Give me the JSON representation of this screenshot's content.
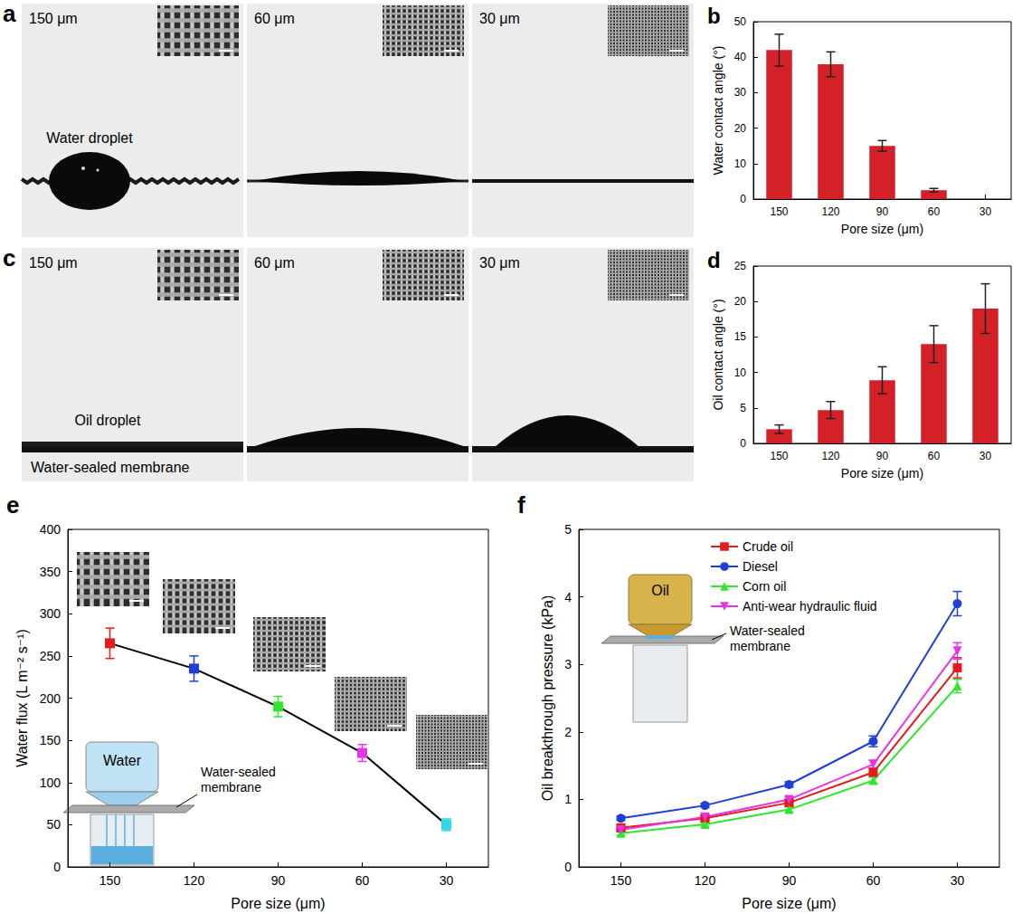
{
  "image_panels": [
    {
      "panel": "a",
      "photos": [
        "150 μm",
        "60 μm",
        "30 μm"
      ],
      "annotations": [
        "Water droplet"
      ]
    },
    {
      "panel": "c",
      "photos": [
        "150 μm",
        "60 μm",
        "30 μm"
      ],
      "annotations": [
        "Oil droplet",
        "Water-sealed membrane"
      ]
    }
  ],
  "chart_data": [
    {
      "panel": "b",
      "type": "bar",
      "categories": [
        "150",
        "120",
        "90",
        "60",
        "30"
      ],
      "values": [
        42,
        38,
        15,
        2.5,
        0
      ],
      "errors": [
        4.5,
        3.5,
        1.5,
        0.5,
        0
      ],
      "color": "#d42027",
      "x_label": "Pore size (μm)",
      "y_label": "Water contact angle (°)",
      "ylim": [
        0,
        50
      ],
      "yticks": [
        0,
        10,
        20,
        30,
        40,
        50
      ],
      "grid": false
    },
    {
      "panel": "d",
      "type": "bar",
      "categories": [
        "150",
        "120",
        "90",
        "60",
        "30"
      ],
      "values": [
        2,
        4.7,
        8.9,
        14,
        19
      ],
      "errors": [
        0.6,
        1.2,
        1.9,
        2.6,
        3.5
      ],
      "color": "#d42027",
      "x_label": "Pore size (μm)",
      "y_label": "Oil contact angle (°)",
      "ylim": [
        0,
        25
      ],
      "yticks": [
        0,
        5,
        10,
        15,
        20,
        25
      ],
      "grid": false
    },
    {
      "panel": "e",
      "type": "line",
      "categories": [
        "150",
        "120",
        "90",
        "60",
        "30"
      ],
      "values": [
        265,
        235,
        190,
        135,
        50
      ],
      "errors": [
        18,
        15,
        12,
        10,
        7
      ],
      "color": "#000000",
      "colors": [
        "#e41a1c",
        "#1f3fd6",
        "#2ee62e",
        "#e833e8",
        "#33d6e8"
      ],
      "marker": "square",
      "x_label": "Pore size (μm)",
      "y_label": "Water flux (L m⁻² s⁻¹)",
      "ylim": [
        0,
        400
      ],
      "yticks": [
        0,
        50,
        100,
        150,
        200,
        250,
        300,
        350,
        400
      ],
      "grid": false,
      "annotations": [
        "Water",
        "Water-sealed membrane"
      ]
    },
    {
      "panel": "f",
      "type": "line",
      "categories": [
        "150",
        "120",
        "90",
        "60",
        "30"
      ],
      "series": [
        {
          "name": "Crude oil",
          "color": "#e41a1c",
          "marker": "square",
          "values": [
            0.58,
            0.72,
            0.95,
            1.4,
            2.95
          ],
          "errors": [
            0.03,
            0.03,
            0.04,
            0.06,
            0.15
          ]
        },
        {
          "name": "Diesel",
          "color": "#1f3fd6",
          "marker": "circle",
          "values": [
            0.72,
            0.91,
            1.22,
            1.86,
            3.9
          ],
          "errors": [
            0.03,
            0.03,
            0.04,
            0.08,
            0.18
          ]
        },
        {
          "name": "Corn oil",
          "color": "#2ee62e",
          "marker": "triangle",
          "values": [
            0.5,
            0.63,
            0.85,
            1.28,
            2.68
          ],
          "errors": [
            0.03,
            0.03,
            0.04,
            0.05,
            0.1
          ]
        },
        {
          "name": "Anti-wear hydraulic fluid",
          "color": "#e833e8",
          "marker": "triangle-down",
          "values": [
            0.55,
            0.74,
            1.0,
            1.52,
            3.2
          ],
          "errors": [
            0.03,
            0.03,
            0.04,
            0.06,
            0.12
          ]
        }
      ],
      "x_label": "Pore size (μm)",
      "y_label": "Oil breakthrough pressure (kPa)",
      "ylim": [
        0,
        5
      ],
      "yticks": [
        0,
        1,
        2,
        3,
        4,
        5
      ],
      "grid": false,
      "legend": "upper left",
      "annotations": [
        "Oil",
        "Water-sealed membrane"
      ]
    }
  ]
}
